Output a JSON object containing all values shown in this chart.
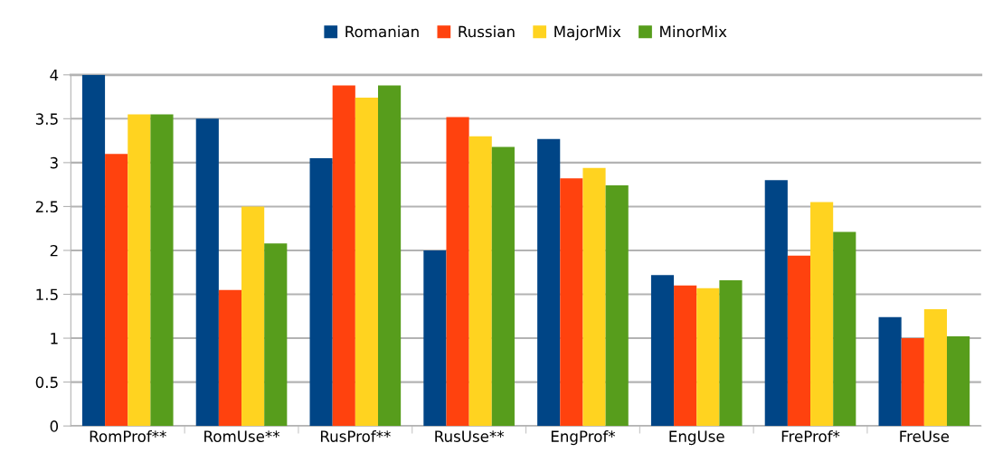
{
  "chart_data": {
    "type": "bar",
    "categories": [
      "RomProf**",
      "RomUse**",
      "RusProf**",
      "RusUse**",
      "EngProf*",
      "EngUse",
      "FreProf*",
      "FreUse"
    ],
    "series": [
      {
        "name": "Romanian",
        "color": "#004586",
        "values": [
          4.0,
          3.5,
          3.05,
          2.0,
          3.27,
          1.72,
          2.8,
          1.24
        ]
      },
      {
        "name": "Russian",
        "color": "#ff420e",
        "values": [
          3.1,
          1.55,
          3.88,
          3.52,
          2.82,
          1.6,
          1.94,
          1.0
        ]
      },
      {
        "name": "MajorMix",
        "color": "#ffd320",
        "values": [
          3.55,
          2.5,
          3.74,
          3.3,
          2.94,
          1.57,
          2.55,
          1.33
        ]
      },
      {
        "name": "MinorMix",
        "color": "#579d1c",
        "values": [
          3.55,
          2.08,
          3.88,
          3.18,
          2.74,
          1.66,
          2.21,
          1.02
        ]
      }
    ],
    "ylim": [
      0,
      4
    ],
    "yticks": [
      0,
      0.5,
      1,
      1.5,
      2,
      2.5,
      3,
      3.5,
      4
    ],
    "grid": "y",
    "legend": "top"
  }
}
